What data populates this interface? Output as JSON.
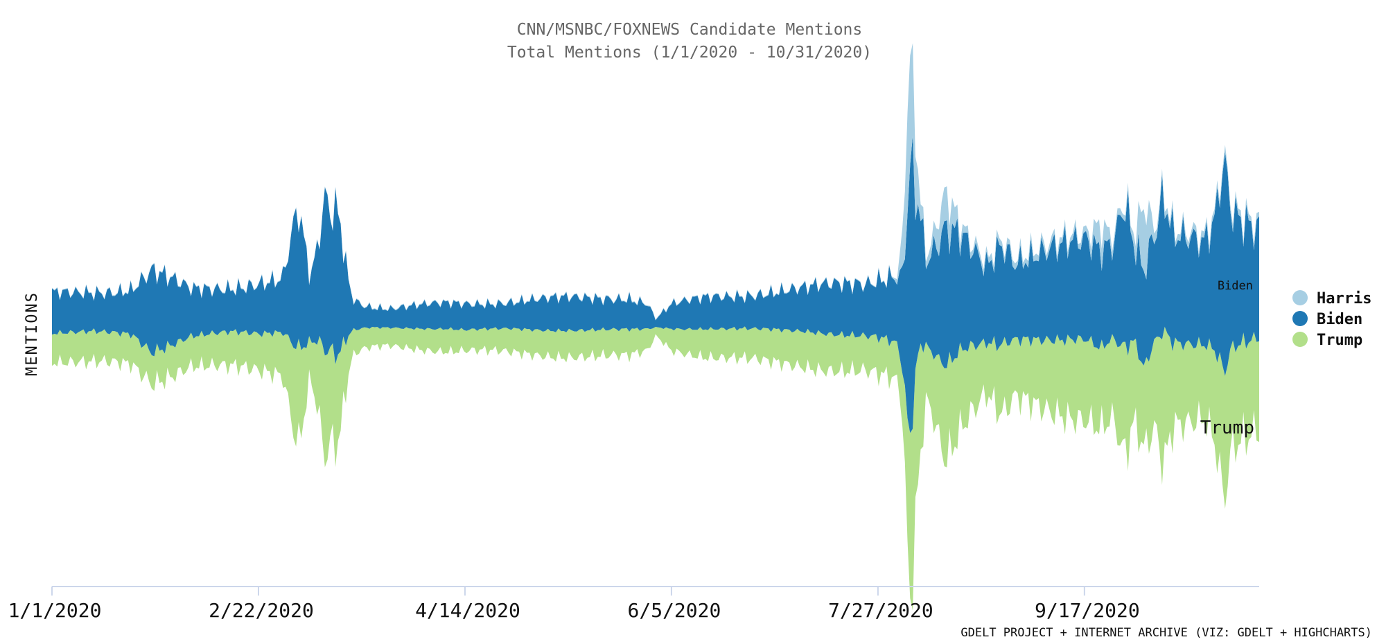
{
  "chart_data": {
    "type": "streamgraph",
    "title": "CNN/MSNBC/FOXNEWS Candidate Mentions",
    "subtitle": "Total Mentions (1/1/2020 - 10/31/2020)",
    "ylabel": "MENTIONS",
    "xlabel": "",
    "x_tick_labels": [
      "1/1/2020",
      "2/22/2020",
      "4/14/2020",
      "6/5/2020",
      "7/27/2020",
      "9/17/2020"
    ],
    "x_tick_days": [
      0,
      52,
      104,
      156,
      208,
      260
    ],
    "x_range_days": [
      0,
      304
    ],
    "series": [
      {
        "name": "Harris",
        "color": "#a6cee3"
      },
      {
        "name": "Biden",
        "color": "#1f78b4"
      },
      {
        "name": "Trump",
        "color": "#b2df8a"
      }
    ],
    "inline_labels": {
      "biden": "Biden",
      "trump": "Trump"
    },
    "credit": "GDELT PROJECT + INTERNET ARCHIVE (VIZ: GDELT + HIGHCHARTS)"
  }
}
